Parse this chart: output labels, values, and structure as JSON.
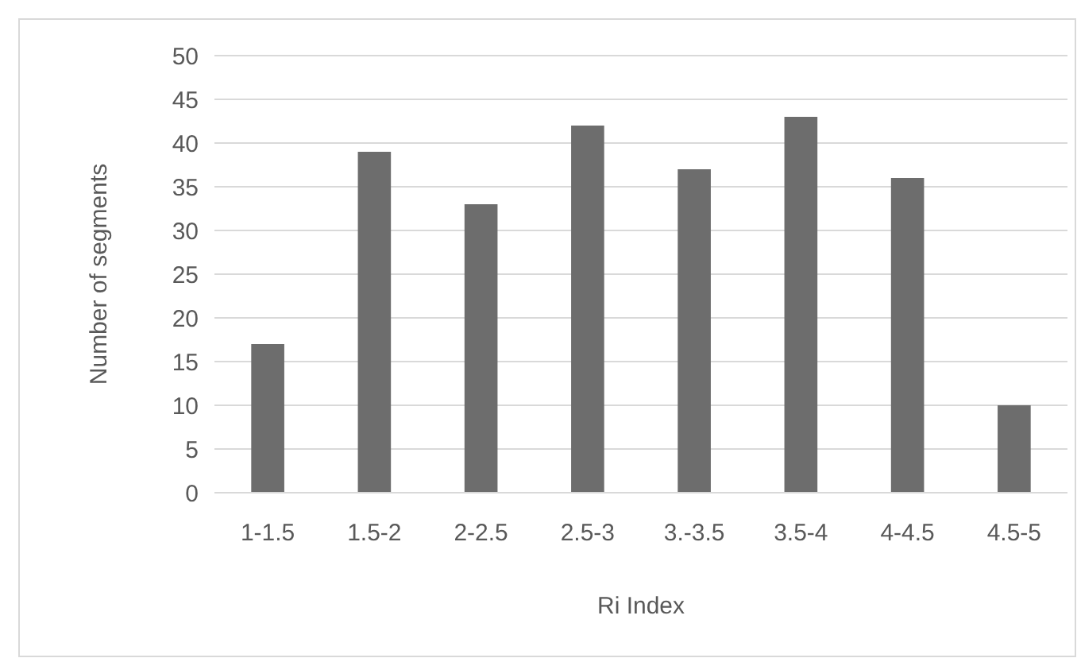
{
  "chart_data": {
    "type": "bar",
    "xlabel": "Ri Index",
    "ylabel": "Number of segments",
    "categories": [
      "1-1.5",
      "1.5-2",
      "2-2.5",
      "2.5-3",
      "3.-3.5",
      "3.5-4",
      "4-4.5",
      "4.5-5"
    ],
    "values": [
      17,
      39,
      33,
      42,
      37,
      43,
      36,
      10
    ],
    "color": "#6d6d6d",
    "ylim": [
      0,
      50
    ],
    "yticks": [
      0,
      5,
      10,
      15,
      20,
      25,
      30,
      35,
      40,
      45,
      50
    ],
    "grid": "y"
  }
}
